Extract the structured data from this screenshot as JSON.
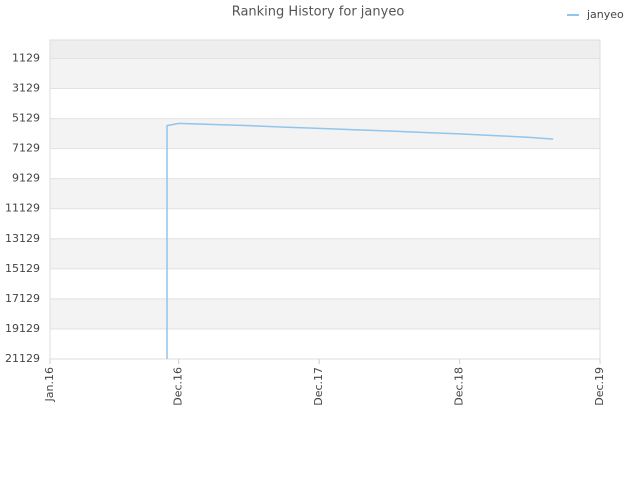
{
  "chart_data": {
    "type": "line",
    "title": "Ranking History for janyeo",
    "x": [
      "2016-11",
      "2016-11",
      "2016-11",
      "2016-12",
      "2017-03",
      "2017-06",
      "2017-09",
      "2017-12",
      "2018-03",
      "2018-06",
      "2018-09",
      "2018-12",
      "2019-03",
      "2019-06",
      "2019-08"
    ],
    "series": [
      {
        "name": "janyeo",
        "color": "#92c5ec",
        "values": [
          21129,
          7400,
          5600,
          5450,
          5520,
          5600,
          5700,
          5780,
          5870,
          5960,
          6060,
          6150,
          6260,
          6380,
          6500
        ]
      }
    ],
    "xlim": [
      "2016-01",
      "2019-12"
    ],
    "xticks": [
      {
        "value": "2016-01",
        "label": "Jan.16"
      },
      {
        "value": "2016-12",
        "label": "Dec.16"
      },
      {
        "value": "2017-12",
        "label": "Dec.17"
      },
      {
        "value": "2018-12",
        "label": "Dec.18"
      },
      {
        "value": "2019-12",
        "label": "Dec.19"
      }
    ],
    "ylim": [
      21129,
      -100
    ],
    "yticks": [
      1129,
      3129,
      5129,
      7129,
      9129,
      11129,
      13129,
      15129,
      17129,
      19129,
      21129
    ],
    "grid": true,
    "legend": "top-right"
  }
}
